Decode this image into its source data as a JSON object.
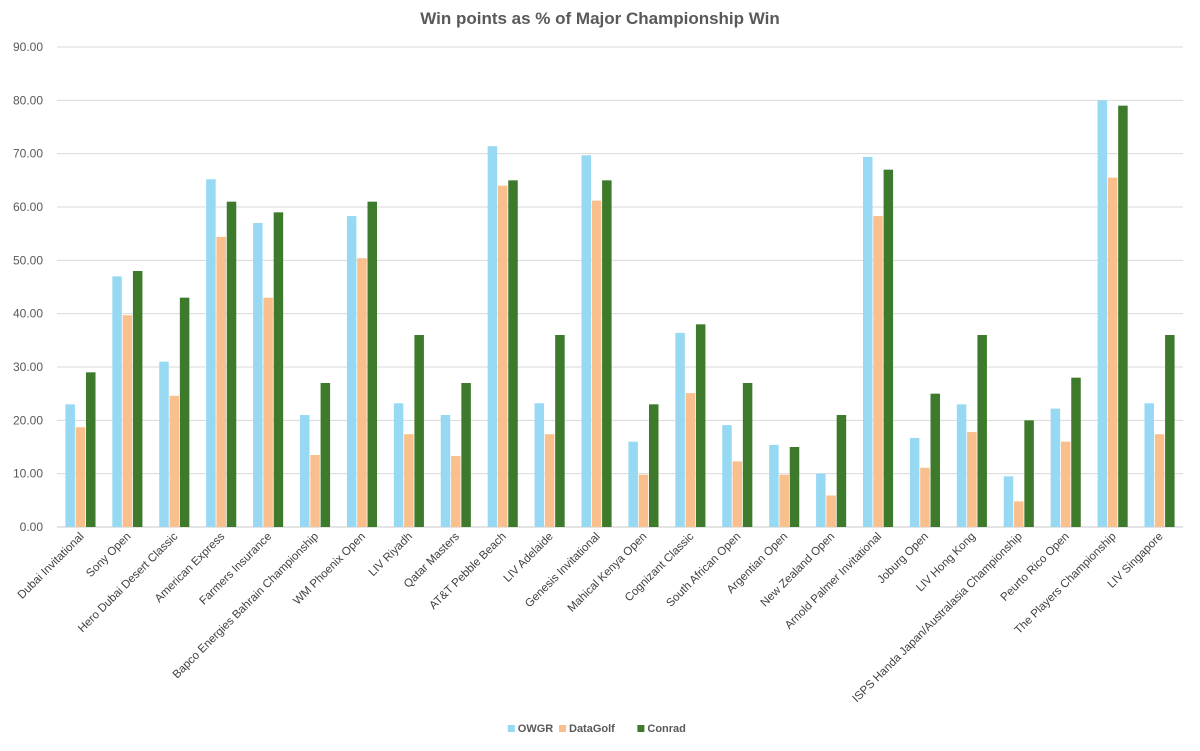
{
  "chart_data": {
    "type": "bar",
    "title": "Win points as % of Major Championship Win",
    "xlabel": "",
    "ylabel": "",
    "ylim": [
      0,
      90
    ],
    "yticks": [
      "0.00",
      "10.00",
      "20.00",
      "30.00",
      "40.00",
      "50.00",
      "60.00",
      "70.00",
      "80.00",
      "90.00"
    ],
    "grid": true,
    "legend_position": "bottom",
    "categories": [
      "Dubai Invitational",
      "Sony Open",
      "Hero Dubai Desert Classic",
      "American Express",
      "Farmers Insurance",
      "Bapco Energies Bahrain Championship",
      "WM Phoenix Open",
      "LIV Riyadh",
      "Qatar Masters",
      "AT&T Pebble Beach",
      "LIV Adelaide",
      "Genesis Invitational",
      "Mahical Kenya Open",
      "Cognizant Classic",
      "South African Open",
      "Argentian Open",
      "New Zealand Open",
      "Arnold Palmer Invitational",
      "Joburg Open",
      "LIV Hong Kong",
      "ISPS Handa Japan/Australasia Championship",
      "Peurto Rico Open",
      "The Players Championship",
      "LIV Singapore"
    ],
    "series": [
      {
        "name": "OWGR",
        "color": "#97d9f2",
        "values": [
          23,
          47,
          31,
          65.2,
          57,
          21,
          58.3,
          23.2,
          21,
          71.4,
          23.2,
          69.7,
          16,
          36.4,
          19.1,
          15.4,
          10,
          69.4,
          16.7,
          23,
          9.5,
          22.2,
          80,
          23.2
        ]
      },
      {
        "name": "DataGolf",
        "color": "#f9bf8c",
        "values": [
          18.7,
          39.7,
          24.6,
          54.4,
          43,
          13.5,
          50.4,
          17.4,
          13.3,
          64,
          17.4,
          61.2,
          9.8,
          25.1,
          12.3,
          9.8,
          5.9,
          58.3,
          11.1,
          17.8,
          4.8,
          16,
          65.5,
          17.4
        ]
      },
      {
        "name": "Conrad",
        "color": "#3d7a2b",
        "values": [
          29,
          48,
          43,
          61,
          59,
          27,
          61,
          36,
          27,
          65,
          36,
          65,
          23,
          38,
          27,
          15,
          21,
          67,
          25,
          36,
          20,
          28,
          79,
          36
        ]
      }
    ]
  }
}
